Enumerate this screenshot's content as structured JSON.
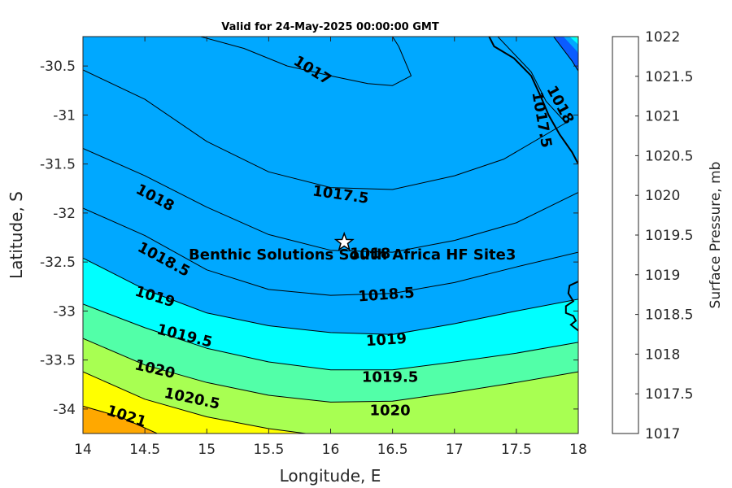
{
  "chart_data": {
    "type": "contour",
    "title": "Valid for 24-May-2025 00:00:00 GMT",
    "xlabel": "Longitude, E",
    "ylabel": "Latitude, S",
    "xlim": [
      14,
      18
    ],
    "ylim": [
      -34.25,
      -30.2
    ],
    "xticks": [
      "14",
      "14.5",
      "15",
      "15.5",
      "16",
      "16.5",
      "17",
      "17.5",
      "18"
    ],
    "yticks": [
      "-30.5",
      "-31",
      "-31.5",
      "-32",
      "-32.5",
      "-33",
      "-33.5",
      "-34"
    ],
    "colorbar": {
      "label": "Surface Pressure, mb",
      "levels": [
        1017,
        1017.5,
        1018,
        1018.5,
        1019,
        1019.5,
        1020,
        1020.5,
        1021,
        1021.5,
        1022
      ],
      "tick_labels": [
        "1017",
        "1017.5",
        "1018",
        "1018.5",
        "1019",
        "1019.5",
        "1020",
        "1020.5",
        "1021",
        "1021.5",
        "1022"
      ],
      "colors": [
        "#0000a8",
        "#0000f0",
        "#0a5cff",
        "#00a8ff",
        "#00ffff",
        "#52ffa8",
        "#a8ff52",
        "#ffff00",
        "#ffa800",
        "#ff5a00",
        "#ff0000"
      ]
    },
    "contours": [
      {
        "level": 1017,
        "points": [
          [
            14.95,
            -30.2
          ],
          [
            15.3,
            -30.32
          ],
          [
            15.65,
            -30.5
          ],
          [
            16.0,
            -30.6
          ],
          [
            16.3,
            -30.68
          ],
          [
            16.5,
            -30.7
          ],
          [
            16.65,
            -30.6
          ],
          [
            16.55,
            -30.3
          ],
          [
            16.5,
            -30.2
          ]
        ]
      },
      {
        "level": 1017.5,
        "points": [
          [
            14.0,
            -30.54
          ],
          [
            14.5,
            -30.84
          ],
          [
            15.0,
            -31.27
          ],
          [
            15.5,
            -31.58
          ],
          [
            16.0,
            -31.74
          ],
          [
            16.5,
            -31.76
          ],
          [
            17.0,
            -31.62
          ],
          [
            17.4,
            -31.45
          ],
          [
            17.9,
            -31.08
          ],
          [
            17.74,
            -30.86
          ],
          [
            17.62,
            -30.56
          ],
          [
            17.35,
            -30.2
          ]
        ]
      },
      {
        "level": 1018,
        "points": [
          [
            14.0,
            -31.34
          ],
          [
            14.5,
            -31.62
          ],
          [
            15.0,
            -31.94
          ],
          [
            15.5,
            -32.22
          ],
          [
            16.0,
            -32.38
          ],
          [
            16.5,
            -32.4
          ],
          [
            17.0,
            -32.28
          ],
          [
            17.5,
            -32.1
          ],
          [
            18.0,
            -31.79
          ]
        ]
      },
      {
        "level": 1018,
        "points": [
          [
            17.8,
            -30.2
          ],
          [
            17.95,
            -30.45
          ],
          [
            18.0,
            -30.55
          ]
        ]
      },
      {
        "level": 1018.5,
        "points": [
          [
            14.0,
            -31.95
          ],
          [
            14.5,
            -32.23
          ],
          [
            15.0,
            -32.58
          ],
          [
            15.5,
            -32.78
          ],
          [
            16.0,
            -32.84
          ],
          [
            16.5,
            -32.82
          ],
          [
            17.0,
            -32.71
          ],
          [
            17.5,
            -32.55
          ],
          [
            18.0,
            -32.4
          ]
        ]
      },
      {
        "level": 1018.5,
        "points": [
          [
            18.0,
            -30.2
          ]
        ]
      },
      {
        "level": 1019,
        "points": [
          [
            14.0,
            -32.46
          ],
          [
            14.5,
            -32.78
          ],
          [
            15.0,
            -33.02
          ],
          [
            15.5,
            -33.15
          ],
          [
            16.0,
            -33.22
          ],
          [
            16.5,
            -33.24
          ],
          [
            17.0,
            -33.13
          ],
          [
            17.5,
            -33.0
          ],
          [
            18.0,
            -32.88
          ]
        ]
      },
      {
        "level": 1019.5,
        "points": [
          [
            14.0,
            -32.93
          ],
          [
            14.5,
            -33.17
          ],
          [
            15.0,
            -33.38
          ],
          [
            15.5,
            -33.52
          ],
          [
            16.0,
            -33.6
          ],
          [
            16.5,
            -33.6
          ],
          [
            17.0,
            -33.52
          ],
          [
            17.5,
            -33.43
          ],
          [
            18.0,
            -33.32
          ]
        ]
      },
      {
        "level": 1020,
        "points": [
          [
            14.0,
            -33.28
          ],
          [
            14.5,
            -33.55
          ],
          [
            15.0,
            -33.73
          ],
          [
            15.5,
            -33.86
          ],
          [
            16.0,
            -33.93
          ],
          [
            16.5,
            -33.92
          ],
          [
            17.0,
            -33.83
          ],
          [
            17.5,
            -33.73
          ],
          [
            18.0,
            -33.62
          ]
        ]
      },
      {
        "level": 1020.5,
        "points": [
          [
            14.0,
            -33.62
          ],
          [
            14.5,
            -33.9
          ],
          [
            15.0,
            -34.08
          ],
          [
            15.5,
            -34.2
          ],
          [
            15.8,
            -34.25
          ]
        ]
      },
      {
        "level": 1021,
        "points": [
          [
            14.0,
            -33.97
          ],
          [
            14.3,
            -34.08
          ],
          [
            14.6,
            -34.25
          ]
        ]
      }
    ],
    "contour_labels": [
      {
        "text": "1017",
        "x": 15.85,
        "y": -30.55,
        "angle": 32
      },
      {
        "text": "1017.5",
        "x": 16.08,
        "y": -31.82,
        "angle": 8
      },
      {
        "text": "1017.5",
        "x": 17.7,
        "y": -31.05,
        "angle": 80
      },
      {
        "text": "1018",
        "x": 17.85,
        "y": -30.9,
        "angle": 62
      },
      {
        "text": "1018",
        "x": 14.58,
        "y": -31.85,
        "angle": 28
      },
      {
        "text": "1018",
        "x": 16.32,
        "y": -32.42,
        "angle": 0
      },
      {
        "text": "1018.5",
        "x": 14.65,
        "y": -32.48,
        "angle": 28
      },
      {
        "text": "1018.5",
        "x": 16.45,
        "y": -32.84,
        "angle": -4
      },
      {
        "text": "1019",
        "x": 14.58,
        "y": -32.86,
        "angle": 17
      },
      {
        "text": "1019",
        "x": 16.45,
        "y": -33.3,
        "angle": -4
      },
      {
        "text": "1019.5",
        "x": 14.82,
        "y": -33.26,
        "angle": 14
      },
      {
        "text": "1019.5",
        "x": 16.48,
        "y": -33.68,
        "angle": 0
      },
      {
        "text": "1020",
        "x": 14.58,
        "y": -33.6,
        "angle": 13
      },
      {
        "text": "1020",
        "x": 16.48,
        "y": -34.02,
        "angle": 0
      },
      {
        "text": "1020.5",
        "x": 14.88,
        "y": -33.9,
        "angle": 12
      },
      {
        "text": "1021",
        "x": 14.35,
        "y": -34.08,
        "angle": 18
      }
    ],
    "coastline": [
      [
        17.28,
        -30.2
      ],
      [
        17.32,
        -30.3
      ],
      [
        17.48,
        -30.42
      ],
      [
        17.62,
        -30.6
      ],
      [
        17.7,
        -30.82
      ],
      [
        17.76,
        -31.0
      ],
      [
        17.85,
        -31.2
      ],
      [
        17.95,
        -31.38
      ],
      [
        18.0,
        -31.5
      ]
    ],
    "coastline2": [
      [
        18.0,
        -32.7
      ],
      [
        17.93,
        -32.74
      ],
      [
        17.92,
        -32.82
      ],
      [
        17.96,
        -32.9
      ],
      [
        17.9,
        -32.95
      ],
      [
        17.9,
        -33.02
      ],
      [
        17.96,
        -33.05
      ],
      [
        17.98,
        -33.1
      ],
      [
        17.94,
        -33.14
      ],
      [
        17.98,
        -33.18
      ],
      [
        18.0,
        -33.2
      ]
    ],
    "site": {
      "name": "Benthic Solutions South Africa HF Site3",
      "x": 16.11,
      "y": -32.3
    }
  }
}
